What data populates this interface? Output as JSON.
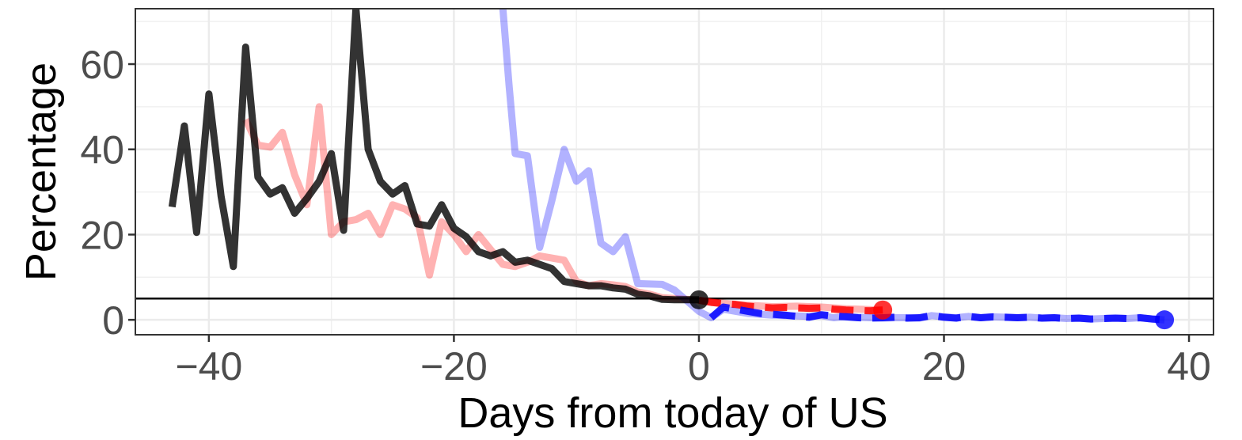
{
  "chart_data": {
    "type": "line",
    "title": "",
    "xlabel": "Days from today of US",
    "ylabel": "Percentage",
    "xlim": [
      -46,
      42
    ],
    "ylim": [
      -3.5,
      73
    ],
    "x_ticks": [
      -40,
      -20,
      0,
      20,
      40
    ],
    "y_ticks": [
      0,
      20,
      40,
      60
    ],
    "x_tick_labels": [
      "−40",
      "−20",
      "0",
      "20",
      "40"
    ],
    "y_tick_labels": [
      "0",
      "20",
      "40",
      "60"
    ],
    "grid": true,
    "legend": "none",
    "reference_line": {
      "y": 5,
      "color": "#000000"
    },
    "series": [
      {
        "color": "#ff0000",
        "opacity": 0.3,
        "style": "solid",
        "x": [
          -37,
          -36,
          -35,
          -34,
          -33,
          -32,
          -31,
          -30,
          -29,
          -28,
          -27,
          -26,
          -25,
          -24,
          -23,
          -22,
          -21,
          -20,
          -19,
          -18,
          -17,
          -16,
          -15,
          -14,
          -13,
          -12,
          -11,
          -10,
          -9,
          -8,
          -7,
          -6,
          -5,
          -4,
          -3,
          -2,
          -1,
          0
        ],
        "y": [
          47,
          41,
          40.5,
          44,
          34,
          27,
          50,
          20,
          23,
          23.5,
          25,
          20,
          27,
          26,
          24,
          10.5,
          23,
          20,
          16,
          20,
          16.5,
          13,
          12.5,
          13.5,
          15,
          14.5,
          14,
          9,
          8,
          8.5,
          8.2,
          7.8,
          6.5,
          6,
          5.2,
          5,
          4.8,
          4.6
        ]
      },
      {
        "color": "#ff0000",
        "opacity": 0.85,
        "style": "dashed",
        "x": [
          0,
          1,
          2,
          3,
          4,
          5,
          6,
          7,
          8,
          9,
          10,
          11,
          12,
          13,
          14,
          15
        ],
        "y": [
          4.6,
          4.1,
          3.8,
          3.6,
          3.2,
          3,
          2.8,
          2.9,
          2.8,
          2.7,
          2.8,
          2.5,
          2.3,
          2.2,
          2.1,
          2.3
        ]
      },
      {
        "color": "#ff0000",
        "opacity": 0.3,
        "style": "solid",
        "x": [
          0,
          2,
          4,
          6,
          8,
          10,
          12,
          14,
          15
        ],
        "y": [
          4.6,
          3.9,
          3.4,
          3.1,
          3.2,
          3,
          2.6,
          2.4,
          2.3
        ]
      },
      {
        "color": "#0000ff",
        "opacity": 0.3,
        "style": "solid",
        "x": [
          -16,
          -15.5,
          -15,
          -14,
          -13,
          -12,
          -11,
          -10,
          -9,
          -8,
          -7,
          -6,
          -5,
          -4,
          -3,
          -2,
          -1,
          0,
          1,
          2,
          3,
          4,
          5,
          6,
          7,
          8,
          9,
          10,
          11,
          12,
          13,
          14,
          15,
          16,
          17,
          18,
          19,
          20,
          21,
          22,
          23,
          24,
          25,
          26,
          27,
          28,
          29,
          30,
          31,
          32,
          33,
          34,
          35,
          36,
          37,
          38
        ],
        "y": [
          73,
          55,
          39,
          38.5,
          17,
          28,
          40,
          32.5,
          35,
          18,
          16,
          19.5,
          8.5,
          8.4,
          8.3,
          7,
          4.5,
          2,
          0.5,
          2.5,
          2,
          1.5,
          1.3,
          1.1,
          1,
          0.9,
          0.8,
          1,
          0.5,
          0.8,
          0.6,
          0.5,
          0.4,
          0.5,
          0.5,
          0.4,
          1,
          0.7,
          0.5,
          0.8,
          0.5,
          0.7,
          0.6,
          0.5,
          0.6,
          0.4,
          0.5,
          0.3,
          0.4,
          0.2,
          0.3,
          0.4,
          0.3,
          0.5,
          0.2,
          0
        ]
      },
      {
        "color": "#0000ff",
        "opacity": 0.85,
        "style": "dashed",
        "x": [
          1,
          2,
          3,
          4,
          5,
          6,
          7,
          8,
          9,
          10,
          11,
          12,
          13,
          14,
          15,
          16,
          17,
          18,
          19,
          20,
          21,
          22,
          23,
          24,
          25,
          26,
          27,
          28,
          29,
          30,
          31,
          32,
          33,
          34,
          35,
          36,
          37,
          38
        ],
        "y": [
          0.5,
          3,
          2.5,
          2,
          1.5,
          1.3,
          1.1,
          0.8,
          0.6,
          1.2,
          0.9,
          0.7,
          0.5,
          0.4,
          0.5,
          0.6,
          0.4,
          0.5,
          1,
          0.6,
          0.4,
          0.8,
          0.5,
          0.7,
          0.6,
          0.5,
          0.6,
          0.4,
          0.5,
          0.3,
          0.4,
          0.2,
          0.3,
          0.4,
          0.3,
          0.5,
          0.2,
          0
        ]
      },
      {
        "color": "#000000",
        "opacity": 0.8,
        "style": "solid",
        "x": [
          -43,
          -42,
          -41,
          -40,
          -39,
          -38,
          -37,
          -36,
          -35,
          -34,
          -33,
          -32,
          -31,
          -30,
          -29,
          -28,
          -27,
          -26,
          -25,
          -24,
          -23,
          -22,
          -21,
          -20,
          -19,
          -18,
          -17,
          -16,
          -15,
          -14,
          -13,
          -12,
          -11,
          -10,
          -9,
          -8,
          -7,
          -6,
          -5,
          -4,
          -3,
          -2,
          -1,
          0
        ],
        "y": [
          26.5,
          45.5,
          20.5,
          53,
          29,
          12.5,
          64,
          33.5,
          29.5,
          31,
          25,
          28.5,
          32.5,
          39,
          21,
          73,
          40,
          32.5,
          29.5,
          31.5,
          22.5,
          22,
          27,
          21.5,
          19.5,
          16,
          15,
          16,
          13.5,
          14,
          13,
          12,
          9,
          8.5,
          8,
          8,
          7.5,
          7.2,
          6,
          5.6,
          4.8,
          4.7,
          4.7,
          4.7
        ]
      }
    ],
    "endpoints": [
      {
        "x": 0,
        "y": 4.7,
        "color": "#000000"
      },
      {
        "x": 15,
        "y": 2.3,
        "color": "#ff0000"
      },
      {
        "x": 38,
        "y": 0,
        "color": "#0000ff"
      }
    ]
  }
}
